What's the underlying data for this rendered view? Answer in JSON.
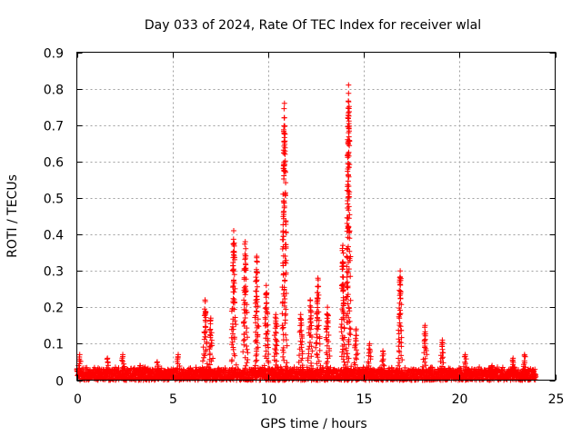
{
  "colors": {
    "series": "#ff0000",
    "grid": "#a0a0a0",
    "axis": "#000000",
    "background": "#ffffff"
  },
  "chart_data": {
    "type": "scatter",
    "title": "Day 033 of 2024, Rate Of TEC Index for receiver wlal",
    "xlabel": "GPS time / hours",
    "ylabel": "ROTI / TECUs",
    "xlim": [
      0,
      25
    ],
    "ylim": [
      0,
      0.9
    ],
    "xticks": [
      "0",
      "5",
      "10",
      "15",
      "20",
      "25"
    ],
    "yticks": [
      "0",
      "0.1",
      "0.2",
      "0.3",
      "0.4",
      "0.5",
      "0.6",
      "0.7",
      "0.8",
      "0.9"
    ],
    "grid": true,
    "marker": "+",
    "baseline": {
      "x_range": [
        0,
        24
      ],
      "y_max": 0.03
    },
    "spikes": [
      {
        "x": 0.15,
        "peak": 0.07
      },
      {
        "x": 1.6,
        "peak": 0.06
      },
      {
        "x": 2.4,
        "peak": 0.07
      },
      {
        "x": 3.3,
        "peak": 0.04
      },
      {
        "x": 4.2,
        "peak": 0.05
      },
      {
        "x": 5.3,
        "peak": 0.07
      },
      {
        "x": 6.7,
        "peak": 0.22
      },
      {
        "x": 7.0,
        "peak": 0.17
      },
      {
        "x": 8.2,
        "peak": 0.41
      },
      {
        "x": 8.8,
        "peak": 0.38
      },
      {
        "x": 9.4,
        "peak": 0.34
      },
      {
        "x": 9.9,
        "peak": 0.26
      },
      {
        "x": 10.4,
        "peak": 0.18
      },
      {
        "x": 10.85,
        "peak": 0.76
      },
      {
        "x": 11.7,
        "peak": 0.18
      },
      {
        "x": 12.2,
        "peak": 0.22
      },
      {
        "x": 12.6,
        "peak": 0.28
      },
      {
        "x": 13.1,
        "peak": 0.2
      },
      {
        "x": 13.9,
        "peak": 0.37
      },
      {
        "x": 14.2,
        "peak": 0.81
      },
      {
        "x": 14.6,
        "peak": 0.14
      },
      {
        "x": 15.3,
        "peak": 0.1
      },
      {
        "x": 16.0,
        "peak": 0.08
      },
      {
        "x": 16.9,
        "peak": 0.3
      },
      {
        "x": 18.2,
        "peak": 0.15
      },
      {
        "x": 19.1,
        "peak": 0.11
      },
      {
        "x": 20.3,
        "peak": 0.07
      },
      {
        "x": 21.7,
        "peak": 0.04
      },
      {
        "x": 22.8,
        "peak": 0.06
      },
      {
        "x": 23.4,
        "peak": 0.07
      }
    ]
  }
}
